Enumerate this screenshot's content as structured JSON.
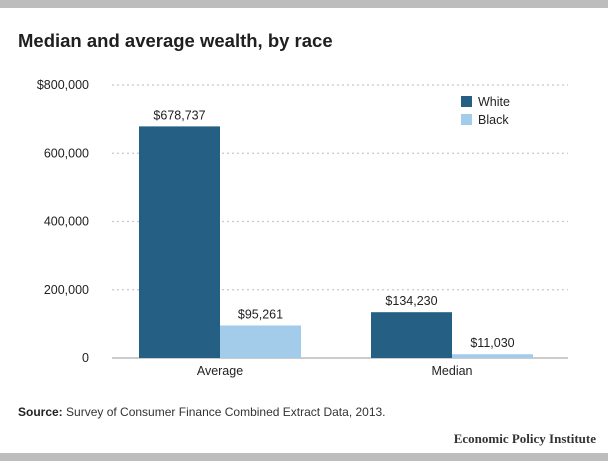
{
  "header": {
    "title": "Median and average wealth, by race"
  },
  "chart_data": {
    "type": "bar",
    "title": "Median and average wealth, by race",
    "xlabel": "",
    "ylabel": "",
    "categories": [
      "Average",
      "Median"
    ],
    "series": [
      {
        "name": "White",
        "color": "#255f84",
        "values": [
          678737,
          134230
        ],
        "labels": [
          "$678,737",
          "$134,230"
        ]
      },
      {
        "name": "Black",
        "color": "#a3cbea",
        "values": [
          95261,
          11030
        ],
        "labels": [
          "$95,261",
          "$11,030"
        ]
      }
    ],
    "ylim": [
      0,
      800000
    ],
    "yticks": [
      {
        "value": 0,
        "label": "0"
      },
      {
        "value": 200000,
        "label": "200,000"
      },
      {
        "value": 400000,
        "label": "400,000"
      },
      {
        "value": 600000,
        "label": "600,000"
      },
      {
        "value": 800000,
        "label": "$800,000"
      }
    ],
    "grid": true,
    "legend": "top-right"
  },
  "footer": {
    "source_label": "Source:",
    "source_text": " Survey of Consumer Finance Combined Extract Data, 2013.",
    "organization": "Economic Policy Institute"
  }
}
